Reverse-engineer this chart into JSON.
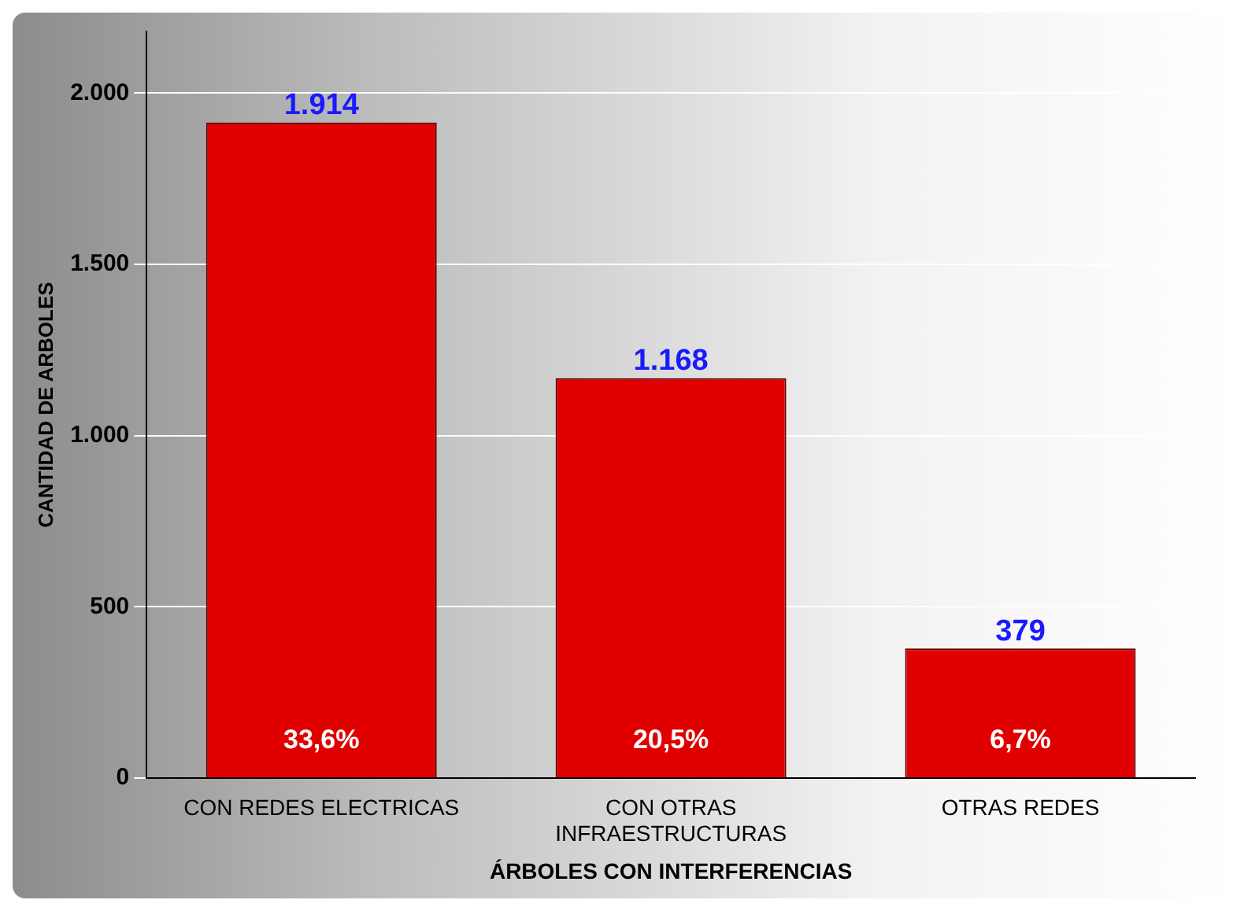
{
  "chart_data": {
    "type": "bar",
    "xlabel": "ÁRBOLES CON INTERFERENCIAS",
    "ylabel": "CANTIDAD DE ARBOLES",
    "categories": [
      "CON REDES ELECTRICAS",
      "CON OTRAS INFRAESTRUCTURAS",
      "OTRAS REDES"
    ],
    "values": [
      1914,
      1168,
      379
    ],
    "color": "#e00000",
    "value_labels": [
      "1.914",
      "1.168",
      "379"
    ],
    "annotations": [
      "33,6%",
      "20,5%",
      "6,7%"
    ],
    "ylim": [
      0,
      2180
    ],
    "yticks": [
      {
        "value": 0,
        "label": "0"
      },
      {
        "value": 500,
        "label": "500"
      },
      {
        "value": 1000,
        "label": "1.000"
      },
      {
        "value": 1500,
        "label": "1.500"
      },
      {
        "value": 2000,
        "label": "2.000"
      }
    ],
    "grid": "y",
    "legend": false
  }
}
